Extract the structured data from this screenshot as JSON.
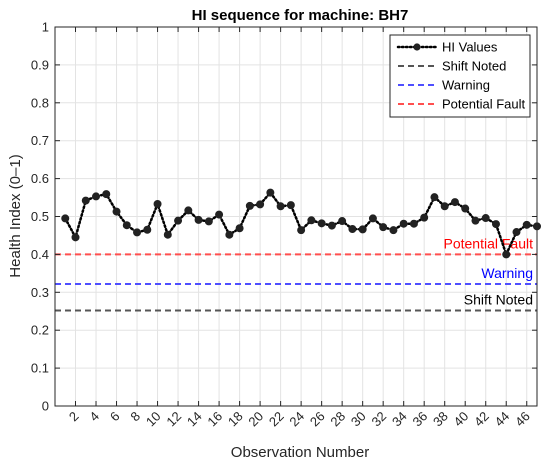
{
  "chart_data": {
    "type": "line",
    "title": "HI sequence for machine: BH7",
    "xlabel": "Observation Number",
    "ylabel": "Health Index (0–1)",
    "xlim": [
      0,
      47
    ],
    "ylim": [
      0,
      1
    ],
    "grid": true,
    "legend_position": "top-right",
    "x_ticks": [
      2,
      4,
      6,
      8,
      10,
      12,
      14,
      16,
      18,
      20,
      22,
      24,
      26,
      28,
      30,
      32,
      34,
      36,
      38,
      40,
      42,
      44,
      46
    ],
    "y_ticks": [
      0,
      0.1,
      0.2,
      0.3,
      0.4,
      0.5,
      0.6,
      0.7,
      0.8,
      0.9,
      1
    ],
    "y_tick_labels": [
      "0",
      "0.1",
      "0.2",
      "0.3",
      "0.4",
      "0.5",
      "0.6",
      "0.7",
      "0.8",
      "0.9",
      "1"
    ],
    "series": [
      {
        "name": "HI Values",
        "color": "#000000",
        "line_style": "dotted",
        "marker": "circle",
        "x": [
          1,
          2,
          3,
          4,
          5,
          6,
          7,
          8,
          9,
          10,
          11,
          12,
          13,
          14,
          15,
          16,
          17,
          18,
          19,
          20,
          21,
          22,
          23,
          24,
          25,
          26,
          27,
          28,
          29,
          30,
          31,
          32,
          33,
          34,
          35,
          36,
          37,
          38,
          39,
          40,
          41,
          42,
          43,
          44,
          45,
          46,
          47
        ],
        "y": [
          0.495,
          0.445,
          0.542,
          0.553,
          0.559,
          0.513,
          0.477,
          0.458,
          0.465,
          0.533,
          0.452,
          0.489,
          0.516,
          0.491,
          0.487,
          0.505,
          0.452,
          0.469,
          0.528,
          0.532,
          0.563,
          0.527,
          0.53,
          0.464,
          0.49,
          0.482,
          0.476,
          0.488,
          0.467,
          0.466,
          0.495,
          0.472,
          0.464,
          0.481,
          0.481,
          0.497,
          0.551,
          0.527,
          0.538,
          0.521,
          0.489,
          0.496,
          0.48,
          0.4,
          0.459,
          0.478,
          0.474
        ]
      }
    ],
    "reference_lines": [
      {
        "name": "Shift Noted",
        "value": 0.252,
        "color": "#555555",
        "label": "Shift Noted",
        "label_color": "#000000"
      },
      {
        "name": "Warning",
        "value": 0.322,
        "color": "#4f4fff",
        "label": "Warning",
        "label_color": "#0000ff"
      },
      {
        "name": "Potential Fault",
        "value": 0.4,
        "color": "#ff4f4f",
        "label": "Potential Fault",
        "label_color": "#ff0000"
      }
    ],
    "legend": [
      "HI Values",
      "Shift Noted",
      "Warning",
      "Potential Fault"
    ]
  }
}
